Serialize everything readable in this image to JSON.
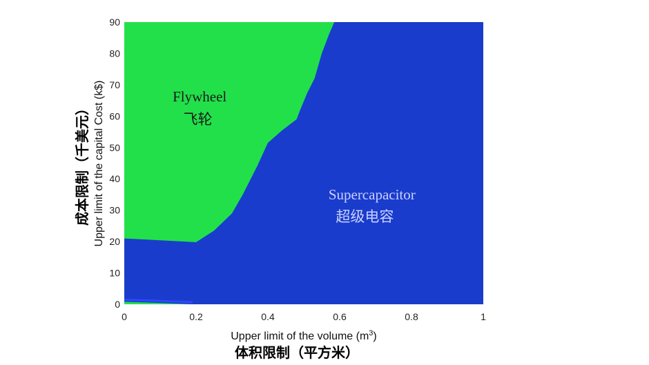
{
  "chart_data": {
    "type": "area",
    "xlabel": "Upper limit of the volume (m",
    "xlabel_sup": "3",
    "xlabel_close": ")",
    "xlabel_cn": "体积限制（平方米）",
    "ylabel": "Upper limit of the capital Cost (k$)",
    "ylabel_cn": "成本限制（千美元）",
    "xlim": [
      0,
      1
    ],
    "ylim": [
      0,
      90
    ],
    "x_ticks": [
      0,
      0.2,
      0.4,
      0.6,
      0.8,
      1
    ],
    "x_tick_labels": [
      "0",
      "0.2",
      "0.4",
      "0.6",
      "0.8",
      "1"
    ],
    "y_ticks": [
      0,
      10,
      20,
      30,
      40,
      50,
      60,
      70,
      80,
      90
    ],
    "y_tick_labels": [
      "0",
      "10",
      "20",
      "30",
      "40",
      "50",
      "60",
      "70",
      "80",
      "90"
    ],
    "colors": {
      "flywheel": "#22e04a",
      "supercapacitor": "#1a3ccc",
      "sliver": "#3344ff"
    },
    "regions": [
      {
        "name": "Flywheel",
        "name_cn": "飞轮",
        "color_key": "flywheel"
      },
      {
        "name": "Supercapacitor",
        "name_cn": "超级电容",
        "color_key": "supercapacitor"
      }
    ],
    "boundary": [
      [
        0,
        21
      ],
      [
        0.05,
        20.7
      ],
      [
        0.1,
        20.4
      ],
      [
        0.15,
        20.1
      ],
      [
        0.2,
        19.8
      ],
      [
        0.25,
        23.5
      ],
      [
        0.3,
        29
      ],
      [
        0.33,
        35
      ],
      [
        0.37,
        44
      ],
      [
        0.4,
        51.5
      ],
      [
        0.44,
        55.5
      ],
      [
        0.48,
        59
      ],
      [
        0.49,
        62
      ],
      [
        0.51,
        67.5
      ],
      [
        0.53,
        72
      ],
      [
        0.55,
        80
      ],
      [
        0.57,
        86
      ],
      [
        0.585,
        90
      ]
    ],
    "lower_boundary": [
      [
        0,
        0.8
      ],
      [
        0.05,
        0.6
      ],
      [
        0.1,
        0.4
      ],
      [
        0.15,
        0.2
      ],
      [
        0.19,
        0
      ]
    ]
  }
}
